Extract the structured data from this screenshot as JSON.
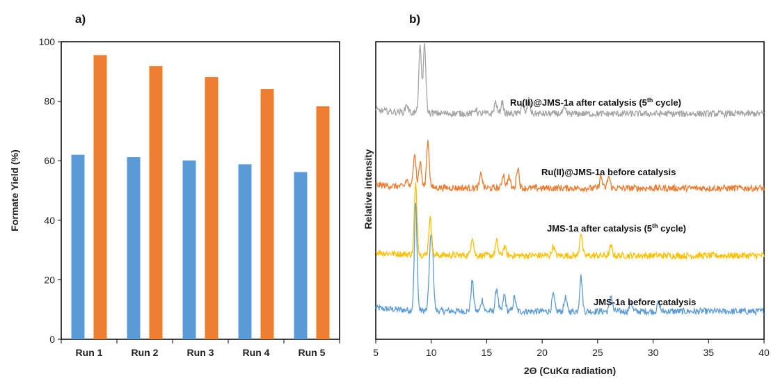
{
  "panel_labels": {
    "a": "a)",
    "b": "b)"
  },
  "chart_data": [
    {
      "type": "bar",
      "panel": "a)",
      "categories": [
        "Run 1",
        "Run 2",
        "Run 3",
        "Run 4",
        "Run 5"
      ],
      "series": [
        {
          "values": [
            62,
            61.2,
            60.1,
            58.8,
            56.2
          ],
          "color": "#5b9bd5"
        },
        {
          "values": [
            95.5,
            91.8,
            88.1,
            84.1,
            78.3
          ],
          "color": "#ed7d31"
        }
      ],
      "xlabel": "",
      "ylabel": "Formate Yield (%)",
      "ylim": [
        0,
        100
      ],
      "yticks": [
        0,
        20,
        40,
        60,
        80,
        100
      ],
      "grid": false
    },
    {
      "type": "line",
      "panel": "b)",
      "xlabel": "2Θ (CuKα radiation)",
      "ylabel": "Relative intensity",
      "xlim": [
        5,
        40
      ],
      "xticks": [
        5,
        10,
        15,
        20,
        25,
        30,
        35,
        40
      ],
      "y_ticks_shown": false,
      "grid": false,
      "series": [
        {
          "label": "JMS-1a before catalysis",
          "color": "#5b9bd5",
          "baseline": 1.2,
          "peaks": [
            [
              8.6,
              4.6
            ],
            [
              9.9,
              2.2
            ],
            [
              10.1,
              2.4
            ],
            [
              13.7,
              1.3
            ],
            [
              14.6,
              0.5
            ],
            [
              15.9,
              1.0
            ],
            [
              16.6,
              0.7
            ],
            [
              17.5,
              0.6
            ],
            [
              21.0,
              0.7
            ],
            [
              22.1,
              0.6
            ],
            [
              23.5,
              1.5
            ],
            [
              26.2,
              0.7
            ],
            [
              28.0,
              0.4
            ],
            [
              30.5,
              0.4
            ]
          ]
        },
        {
          "label": "JMS-1a after catalysis  (5th cycle)",
          "label_main": "JMS-1a after catalysis  (5",
          "label_sup": "th",
          "label_end": " cycle)",
          "color": "#ffc000",
          "baseline": 3.6,
          "peaks": [
            [
              8.6,
              3.0
            ],
            [
              9.9,
              1.6
            ],
            [
              13.7,
              0.8
            ],
            [
              15.9,
              0.6
            ],
            [
              16.6,
              0.4
            ],
            [
              21.0,
              0.4
            ],
            [
              23.5,
              1.0
            ],
            [
              26.2,
              0.4
            ]
          ]
        },
        {
          "label": "Ru(II)@JMS-1a before catalysis",
          "color": "#ed7d31",
          "baseline": 6.5,
          "peaks": [
            [
              7.8,
              0.3
            ],
            [
              8.5,
              1.5
            ],
            [
              9.0,
              1.1
            ],
            [
              9.7,
              2.0
            ],
            [
              14.5,
              0.6
            ],
            [
              16.5,
              0.6
            ],
            [
              17.0,
              0.5
            ],
            [
              17.8,
              0.9
            ],
            [
              25.3,
              0.5
            ],
            [
              26.0,
              0.5
            ]
          ]
        },
        {
          "label": "Ru(II)@JMS-1a after catalysis (5th cycle)",
          "label_main": "Ru(II)@JMS-1a after catalysis (5",
          "label_sup": "th",
          "label_end": " cycle)",
          "color": "#a5a5a5",
          "baseline": 9.7,
          "peaks": [
            [
              7.8,
              0.35
            ],
            [
              9.0,
              2.8
            ],
            [
              9.4,
              2.9
            ],
            [
              14.0,
              0.2
            ],
            [
              15.8,
              0.5
            ],
            [
              16.4,
              0.5
            ],
            [
              18.2,
              0.4
            ],
            [
              18.8,
              0.6
            ],
            [
              22.0,
              0.2
            ]
          ]
        }
      ]
    }
  ]
}
